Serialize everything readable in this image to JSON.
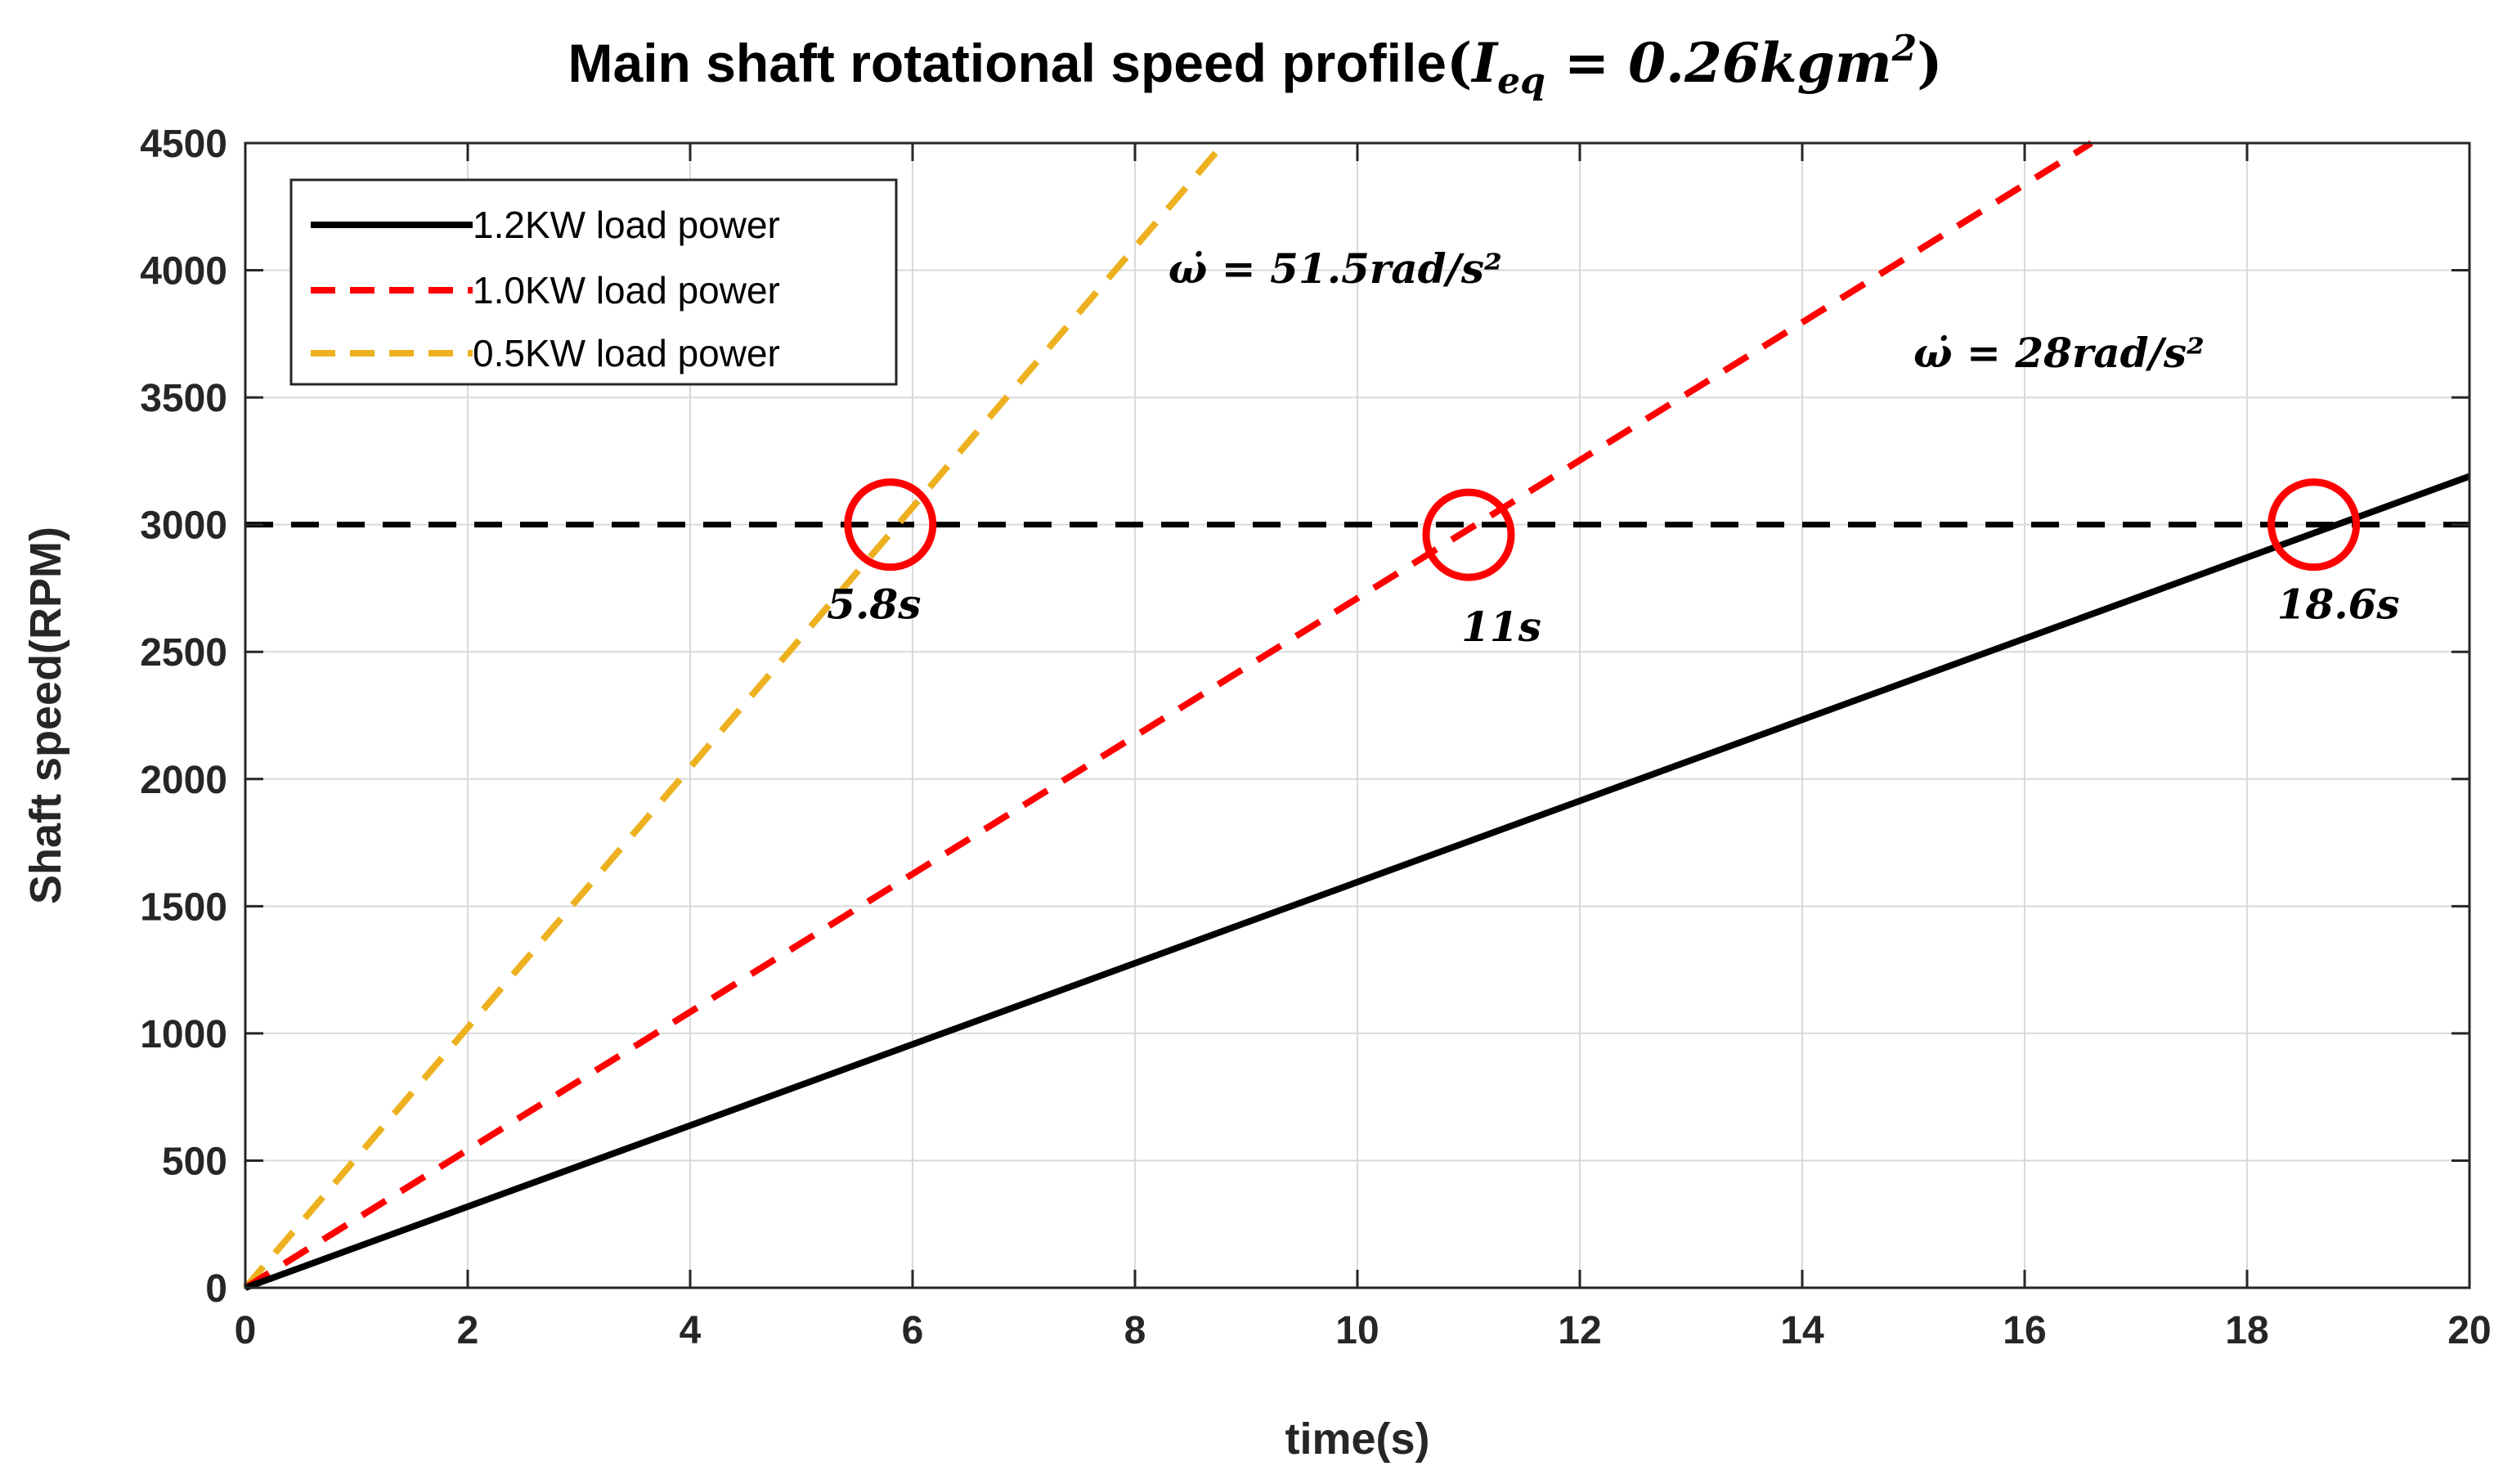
{
  "chart_data": {
    "type": "line",
    "title": "Main shaft rotational speed profile",
    "title_math": {
      "open_paren": "(",
      "symbol": "I",
      "subscript": "eq",
      "rest": " = 0.26kgm",
      "superscript": "2",
      "close_paren": ")"
    },
    "xlabel": "time(s)",
    "ylabel": "Shaft speed(RPM)",
    "xlim": [
      0,
      20
    ],
    "ylim": [
      0,
      4500
    ],
    "xticks": [
      "0",
      "2",
      "4",
      "6",
      "8",
      "10",
      "12",
      "14",
      "16",
      "18",
      "20"
    ],
    "yticks": [
      "0",
      "500",
      "1000",
      "1500",
      "2000",
      "2500",
      "3000",
      "3500",
      "4000",
      "4500"
    ],
    "grid": true,
    "legend_position": "top-left",
    "series": [
      {
        "name": "1.2KW load power",
        "color": "#000000",
        "style": "solid",
        "x": [
          0,
          20
        ],
        "y": [
          0,
          3190
        ]
      },
      {
        "name": "1.0KW load power",
        "color": "#ff0000",
        "style": "dashed",
        "x": [
          0,
          16.6
        ],
        "y": [
          0,
          4500
        ]
      },
      {
        "name": "0.5KW load power",
        "color": "#edb120",
        "style": "dashed",
        "x": [
          0,
          8.8
        ],
        "y": [
          0,
          4500
        ]
      }
    ],
    "reference_line": {
      "y": 3000,
      "color": "#000000",
      "style": "dashed"
    },
    "markers": [
      {
        "x": 5.8,
        "y": 3000,
        "label": "5.8s",
        "color": "#ff0000"
      },
      {
        "x": 11.0,
        "y": 2960,
        "label": "11s",
        "color": "#ff0000"
      },
      {
        "x": 18.6,
        "y": 3000,
        "label": "18.6s",
        "color": "#ff0000"
      }
    ],
    "annotations": [
      {
        "text": "ω̇ = 51.5rad/s²",
        "x": 8.3,
        "y": 3950
      },
      {
        "text": "ω̇ = 28rad/s²",
        "x": 15.0,
        "y": 3620
      }
    ]
  }
}
